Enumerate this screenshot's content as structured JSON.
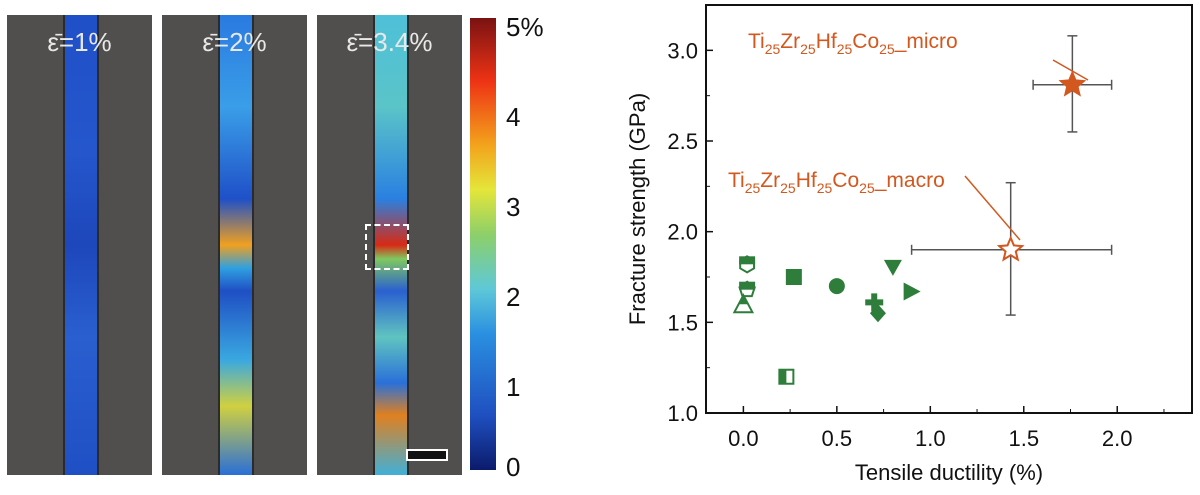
{
  "strain_maps": {
    "panels": [
      {
        "label": "ε̄=1%",
        "mean_strain_percent": 1
      },
      {
        "label": "ε̄=2%",
        "mean_strain_percent": 2
      },
      {
        "label": "ε̄=3.4%",
        "mean_strain_percent": 3.4
      }
    ],
    "colorbar": {
      "ticks": [
        "5%",
        "4",
        "3",
        "2",
        "1",
        "0"
      ],
      "range": [
        0,
        5
      ],
      "colormap": "jet"
    }
  },
  "chart_data": {
    "type": "scatter",
    "xlabel": "Tensile ductility (%)",
    "ylabel": "Fracture strength (GPa)",
    "xlim": [
      -0.2,
      2.4
    ],
    "ylim": [
      1.0,
      3.25
    ],
    "xticks": [
      "0.0",
      "0.5",
      "1.0",
      "1.5",
      "2.0"
    ],
    "yticks": [
      "1.0",
      "1.5",
      "2.0",
      "2.5",
      "3.0"
    ],
    "grid": false,
    "highlight_color": "#d2581f",
    "reference_color": "#2e7d3b",
    "highlighted": [
      {
        "label_main": [
          "Ti",
          "25",
          "Zr",
          "25",
          "Hf",
          "25",
          "Co",
          "25",
          "_micro"
        ],
        "x": 1.76,
        "y": 2.81,
        "xerr": [
          1.55,
          1.97
        ],
        "yerr": [
          2.55,
          3.08
        ],
        "marker": "star-filled"
      },
      {
        "label_main": [
          "Ti",
          "25",
          "Zr",
          "25",
          "Hf",
          "25",
          "Co",
          "25",
          "_macro"
        ],
        "x": 1.43,
        "y": 1.9,
        "xerr": [
          0.9,
          1.97
        ],
        "yerr": [
          1.54,
          2.27
        ],
        "marker": "star-open"
      }
    ],
    "reference_points": [
      {
        "x": 0.02,
        "y": 1.82,
        "marker": "hexagon-half"
      },
      {
        "x": 0.02,
        "y": 1.68,
        "marker": "pentagon-half"
      },
      {
        "x": 0.0,
        "y": 1.6,
        "marker": "triangle-half"
      },
      {
        "x": 0.27,
        "y": 1.75,
        "marker": "square"
      },
      {
        "x": 0.5,
        "y": 1.7,
        "marker": "circle"
      },
      {
        "x": 0.7,
        "y": 1.61,
        "marker": "cross"
      },
      {
        "x": 0.72,
        "y": 1.55,
        "marker": "diamond"
      },
      {
        "x": 0.8,
        "y": 1.8,
        "marker": "triangle-down"
      },
      {
        "x": 0.9,
        "y": 1.67,
        "marker": "triangle-right"
      },
      {
        "x": 0.23,
        "y": 1.2,
        "marker": "square-half"
      }
    ]
  }
}
